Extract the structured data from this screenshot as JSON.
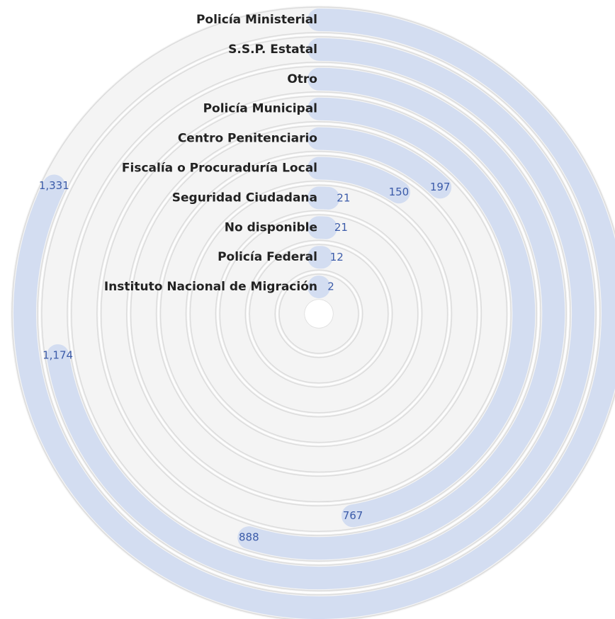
{
  "chart_data": {
    "type": "radial-bar",
    "categories": [
      "Policía Ministerial",
      "S.S.P. Estatal",
      "Otro",
      "Policía Municipal",
      "Centro Penitenciario",
      "Fiscalía o Procuraduría Local",
      "Seguridad Ciudadana",
      "No disponible",
      "Policía Federal",
      "Instituto Nacional de Migración"
    ],
    "values": [
      1331,
      1174,
      888,
      767,
      197,
      150,
      21,
      21,
      12,
      2
    ],
    "value_labels": [
      "1,331",
      "1,174",
      "888",
      "767",
      "197",
      "150",
      "21",
      "21",
      "12",
      "2"
    ],
    "color": "#d3ddf1",
    "xlim": [
      0,
      1620
    ]
  }
}
